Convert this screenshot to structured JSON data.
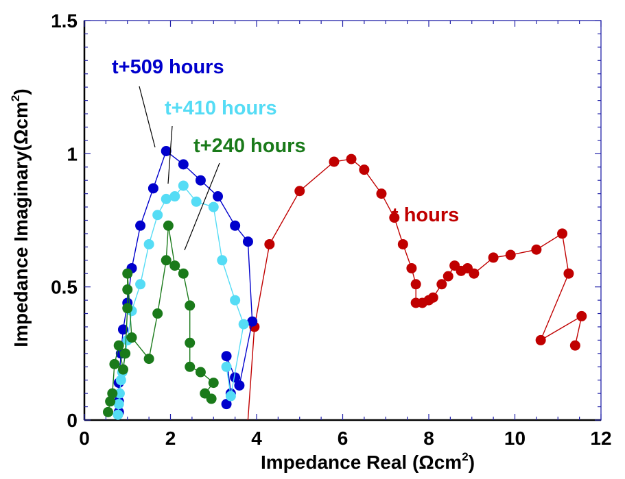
{
  "chart_data": {
    "type": "scatter",
    "title": "",
    "xlabel": "Impedance Real  (Ωcm",
    "xlabel_sup": "2",
    "xlabel_close": ")",
    "ylabel": "Impedance Imaginary(Ωcm",
    "ylabel_sup": "2",
    "ylabel_close": ")",
    "xlim": [
      0,
      12
    ],
    "ylim": [
      0,
      1.5
    ],
    "x_ticks": [
      0,
      2,
      4,
      6,
      8,
      10,
      12
    ],
    "x_tick_labels": [
      "0",
      "2",
      "4",
      "6",
      "8",
      "10",
      "12"
    ],
    "y_ticks": [
      0,
      0.5,
      1,
      1.5
    ],
    "y_tick_labels": [
      "0",
      "0.5",
      "1",
      "1.5"
    ],
    "grid": false,
    "series": [
      {
        "name": "t hours",
        "color": "#c00000",
        "points": [
          [
            3.8,
            0.0
          ],
          [
            3.95,
            0.35
          ],
          [
            4.3,
            0.66
          ],
          [
            5.0,
            0.86
          ],
          [
            5.8,
            0.97
          ],
          [
            6.2,
            0.98
          ],
          [
            6.5,
            0.94
          ],
          [
            6.9,
            0.85
          ],
          [
            7.2,
            0.76
          ],
          [
            7.4,
            0.66
          ],
          [
            7.6,
            0.57
          ],
          [
            7.7,
            0.51
          ],
          [
            7.7,
            0.44
          ],
          [
            7.85,
            0.44
          ],
          [
            8.0,
            0.45
          ],
          [
            8.1,
            0.46
          ],
          [
            8.3,
            0.51
          ],
          [
            8.45,
            0.54
          ],
          [
            8.6,
            0.58
          ],
          [
            8.75,
            0.56
          ],
          [
            8.9,
            0.57
          ],
          [
            9.05,
            0.55
          ],
          [
            9.5,
            0.61
          ],
          [
            9.9,
            0.62
          ],
          [
            10.5,
            0.64
          ],
          [
            11.1,
            0.7
          ],
          [
            11.25,
            0.55
          ],
          [
            10.6,
            0.3
          ],
          [
            11.55,
            0.39
          ],
          [
            11.4,
            0.28
          ]
        ]
      },
      {
        "name": "t+509 hours",
        "color": "#0000cc",
        "points": [
          [
            0.8,
            0.03
          ],
          [
            0.8,
            0.07
          ],
          [
            0.8,
            0.14
          ],
          [
            0.85,
            0.25
          ],
          [
            0.9,
            0.34
          ],
          [
            1.0,
            0.44
          ],
          [
            1.1,
            0.57
          ],
          [
            1.3,
            0.73
          ],
          [
            1.6,
            0.87
          ],
          [
            1.9,
            1.01
          ],
          [
            2.3,
            0.96
          ],
          [
            2.7,
            0.9
          ],
          [
            3.1,
            0.84
          ],
          [
            3.5,
            0.73
          ],
          [
            3.8,
            0.67
          ],
          [
            3.9,
            0.37
          ],
          [
            3.6,
            0.13
          ],
          [
            3.5,
            0.16
          ],
          [
            3.3,
            0.24
          ],
          [
            3.4,
            0.1
          ],
          [
            3.3,
            0.06
          ]
        ]
      },
      {
        "name": "t+410 hours",
        "color": "#55dcf5",
        "points": [
          [
            0.78,
            0.02
          ],
          [
            0.8,
            0.06
          ],
          [
            0.82,
            0.1
          ],
          [
            0.85,
            0.15
          ],
          [
            0.88,
            0.18
          ],
          [
            1.0,
            0.3
          ],
          [
            1.1,
            0.41
          ],
          [
            1.3,
            0.51
          ],
          [
            1.5,
            0.66
          ],
          [
            1.7,
            0.77
          ],
          [
            1.9,
            0.83
          ],
          [
            2.1,
            0.84
          ],
          [
            2.3,
            0.88
          ],
          [
            2.6,
            0.82
          ],
          [
            3.0,
            0.8
          ],
          [
            3.2,
            0.6
          ],
          [
            3.5,
            0.45
          ],
          [
            3.7,
            0.36
          ],
          [
            3.4,
            0.09
          ],
          [
            3.3,
            0.2
          ]
        ]
      },
      {
        "name": "t+240 hours",
        "color": "#1a7a1a",
        "points": [
          [
            0.55,
            0.03
          ],
          [
            0.6,
            0.07
          ],
          [
            0.65,
            0.1
          ],
          [
            0.7,
            0.21
          ],
          [
            0.8,
            0.28
          ],
          [
            0.9,
            0.19
          ],
          [
            0.95,
            0.25
          ],
          [
            1.0,
            0.42
          ],
          [
            1.0,
            0.49
          ],
          [
            1.0,
            0.55
          ],
          [
            1.1,
            0.31
          ],
          [
            1.5,
            0.23
          ],
          [
            1.7,
            0.4
          ],
          [
            1.9,
            0.6
          ],
          [
            1.95,
            0.73
          ],
          [
            2.1,
            0.58
          ],
          [
            2.3,
            0.55
          ],
          [
            2.45,
            0.43
          ],
          [
            2.45,
            0.29
          ],
          [
            2.45,
            0.2
          ],
          [
            2.7,
            0.18
          ],
          [
            3.0,
            0.14
          ],
          [
            2.8,
            0.1
          ],
          [
            2.95,
            0.08
          ]
        ]
      }
    ],
    "annotations": [
      {
        "text": "t+509 hours",
        "color": "#0000cc"
      },
      {
        "text": "t+410 hours",
        "color": "#55dcf5"
      },
      {
        "text": "t+240 hours",
        "color": "#1a7a1a"
      },
      {
        "text": "t hours",
        "color": "#c00000"
      }
    ]
  }
}
